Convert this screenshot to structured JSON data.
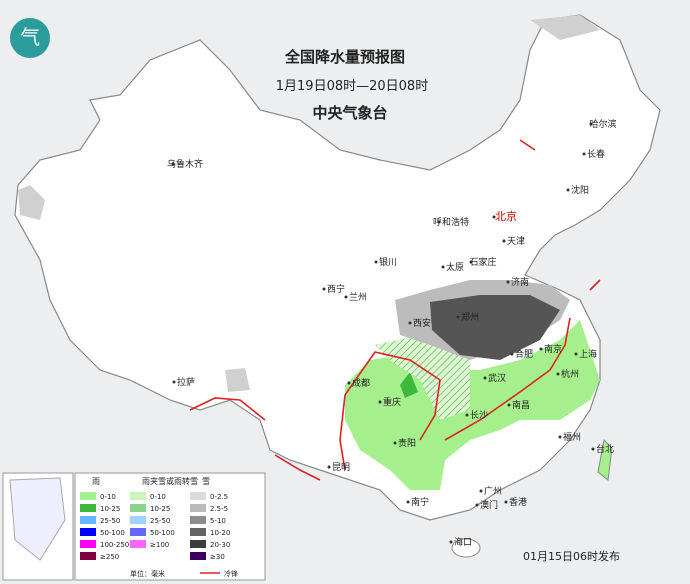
{
  "header": {
    "title": "全国降水量预报图",
    "period": "1月19日08时—20日08时",
    "issuer": "中央气象台"
  },
  "cities": [
    {
      "label": "乌鲁木齐"
    },
    {
      "label": "哈尔滨"
    },
    {
      "label": "长春"
    },
    {
      "label": "沈阳"
    },
    {
      "label": "北京"
    },
    {
      "label": "天津"
    },
    {
      "label": "呼和浩特"
    },
    {
      "label": "石家庄"
    },
    {
      "label": "太原"
    },
    {
      "label": "银川"
    },
    {
      "label": "济南"
    },
    {
      "label": "西宁"
    },
    {
      "label": "兰州"
    },
    {
      "label": "西安"
    },
    {
      "label": "郑州"
    },
    {
      "label": "合肥"
    },
    {
      "label": "南京"
    },
    {
      "label": "上海"
    },
    {
      "label": "杭州"
    },
    {
      "label": "武汉"
    },
    {
      "label": "成都"
    },
    {
      "label": "拉萨"
    },
    {
      "label": "重庆"
    },
    {
      "label": "长沙"
    },
    {
      "label": "南昌"
    },
    {
      "label": "福州"
    },
    {
      "label": "台北"
    },
    {
      "label": "贵阳"
    },
    {
      "label": "昆明"
    },
    {
      "label": "南宁"
    },
    {
      "label": "广州"
    },
    {
      "label": "澳门"
    },
    {
      "label": "香港"
    },
    {
      "label": "海口"
    }
  ],
  "legend": {
    "rain": {
      "title": "雨",
      "items": [
        {
          "label": "0-10",
          "color": "#a5f08c"
        },
        {
          "label": "10-25",
          "color": "#3cb83c"
        },
        {
          "label": "25-50",
          "color": "#61b8ff"
        },
        {
          "label": "50-100",
          "color": "#0000fe"
        },
        {
          "label": "100-250",
          "color": "#fa00fa"
        },
        {
          "label": "≥250",
          "color": "#810040"
        }
      ]
    },
    "mixed": {
      "title": "雨夹雪或雨转雪",
      "items": [
        {
          "label": "0-10",
          "color": "#a5f08c"
        },
        {
          "label": "10-25",
          "color": "#3cb83c"
        },
        {
          "label": "25-50",
          "color": "#61b8ff"
        },
        {
          "label": "50-100",
          "color": "#0000fe"
        },
        {
          "label": "≥100",
          "color": "#fa00fa"
        }
      ]
    },
    "snow": {
      "title": "雪",
      "items": [
        {
          "label": "0-2.5",
          "color": "#dbdbdb"
        },
        {
          "label": "2.5-5",
          "color": "#bababa"
        },
        {
          "label": "5-10",
          "color": "#8c8c8c"
        },
        {
          "label": "10-20",
          "color": "#646464"
        },
        {
          "label": "20-30",
          "color": "#3c3c3c"
        },
        {
          "label": "≥30",
          "color": "#3c0064"
        }
      ]
    },
    "unit": "单位：毫米",
    "front": "冷锋"
  },
  "footer": {
    "release": "01月15日06时发布"
  }
}
